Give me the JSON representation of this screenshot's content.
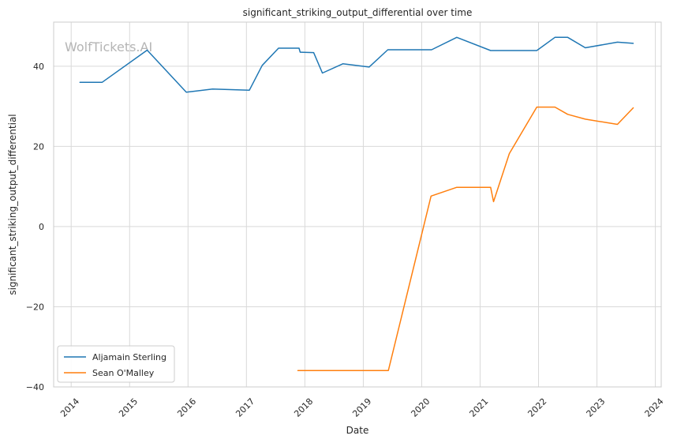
{
  "chart_data": {
    "type": "line",
    "title": "significant_striking_output_differential over time",
    "xlabel": "Date",
    "ylabel": "significant_striking_output_differential",
    "watermark": "WolfTickets.AI",
    "xlim": [
      2013.7,
      2024.1
    ],
    "ylim": [
      -40,
      51
    ],
    "x_ticks": [
      2014,
      2015,
      2016,
      2017,
      2018,
      2019,
      2020,
      2021,
      2022,
      2023,
      2024
    ],
    "x_tick_labels": [
      "2014",
      "2015",
      "2016",
      "2017",
      "2018",
      "2019",
      "2020",
      "2021",
      "2022",
      "2023",
      "2024"
    ],
    "y_ticks": [
      -40,
      -20,
      0,
      20,
      40
    ],
    "y_tick_labels": [
      "−40",
      "−20",
      "0",
      "20",
      "40"
    ],
    "grid": true,
    "legend_position": "lower-left",
    "series": [
      {
        "name": "Aljamain Sterling",
        "color": "#1f77b4",
        "points": [
          [
            2014.15,
            36.0
          ],
          [
            2014.53,
            36.0
          ],
          [
            2015.3,
            44.0
          ],
          [
            2015.97,
            33.5
          ],
          [
            2016.42,
            34.3
          ],
          [
            2017.05,
            34.0
          ],
          [
            2017.27,
            40.2
          ],
          [
            2017.55,
            44.5
          ],
          [
            2017.9,
            44.5
          ],
          [
            2017.92,
            43.5
          ],
          [
            2018.15,
            43.4
          ],
          [
            2018.3,
            38.3
          ],
          [
            2018.65,
            40.6
          ],
          [
            2019.1,
            39.8
          ],
          [
            2019.42,
            44.1
          ],
          [
            2020.17,
            44.1
          ],
          [
            2020.6,
            47.2
          ],
          [
            2021.18,
            43.9
          ],
          [
            2021.97,
            43.9
          ],
          [
            2022.28,
            47.2
          ],
          [
            2022.5,
            47.2
          ],
          [
            2022.8,
            44.6
          ],
          [
            2023.35,
            46.0
          ],
          [
            2023.62,
            45.7
          ]
        ]
      },
      {
        "name": "Sean O'Malley",
        "color": "#ff7f0e",
        "points": [
          [
            2017.88,
            -35.9
          ],
          [
            2019.43,
            -35.9
          ],
          [
            2020.16,
            7.6
          ],
          [
            2020.6,
            9.8
          ],
          [
            2021.18,
            9.8
          ],
          [
            2021.23,
            6.2
          ],
          [
            2021.5,
            18.2
          ],
          [
            2021.97,
            29.8
          ],
          [
            2022.28,
            29.8
          ],
          [
            2022.5,
            28.0
          ],
          [
            2022.8,
            26.8
          ],
          [
            2023.35,
            25.5
          ],
          [
            2023.62,
            29.6
          ]
        ]
      }
    ]
  }
}
